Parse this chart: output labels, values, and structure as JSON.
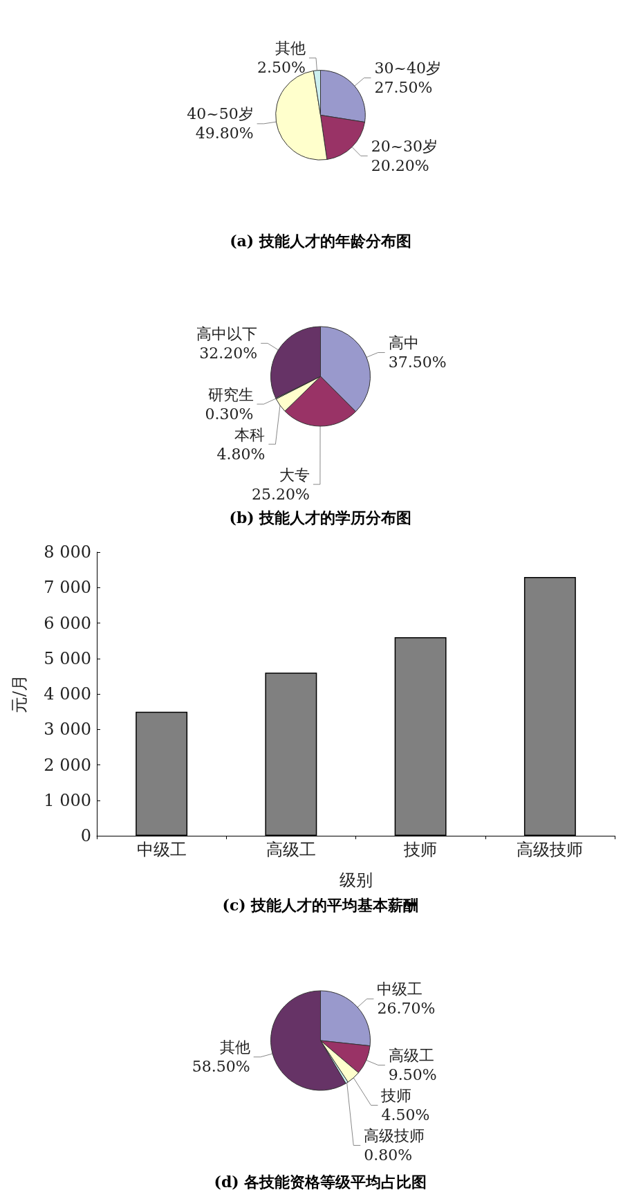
{
  "chart_data": [
    {
      "type": "pie",
      "title": "(a) 技能人才的年龄分布图",
      "categories": [
        "30~40岁",
        "20~30岁",
        "40~50岁",
        "其他"
      ],
      "values": [
        27.5,
        20.2,
        49.8,
        2.5
      ],
      "value_labels": [
        "27.50%",
        "20.20%",
        "49.80%",
        "2.50%"
      ],
      "colors": [
        "#9999cc",
        "#993366",
        "#ffffcc",
        "#ccf0f0"
      ],
      "legend": false
    },
    {
      "type": "pie",
      "title": "(b) 技能人才的学历分布图",
      "categories": [
        "高中",
        "大专",
        "本科",
        "研究生",
        "高中以下"
      ],
      "values": [
        37.5,
        25.2,
        4.8,
        0.3,
        32.2
      ],
      "value_labels": [
        "37.50%",
        "25.20%",
        "4.80%",
        "0.30%",
        "32.20%"
      ],
      "colors": [
        "#9999cc",
        "#993366",
        "#ffffcc",
        "#ccf0f0",
        "#663366"
      ],
      "legend": false
    },
    {
      "type": "bar",
      "title": "(c) 技能人才的平均基本薪酬",
      "xlabel": "级别",
      "ylabel": "元/月",
      "categories": [
        "中级工",
        "高级工",
        "技师",
        "高级技师"
      ],
      "values": [
        3500,
        4600,
        5600,
        7300
      ],
      "color": "#808080",
      "ylim": [
        0,
        8000
      ],
      "yticks": [
        0,
        {
          "value": 1000,
          "label": "1 000"
        },
        {
          "value": 2000,
          "label": "2 000"
        },
        {
          "value": 3000,
          "label": "3 000"
        },
        {
          "value": 4000,
          "label": "4 000"
        },
        {
          "value": 5000,
          "label": "5 000"
        },
        {
          "value": 6000,
          "label": "6 000"
        },
        {
          "value": 7000,
          "label": "7 000"
        },
        {
          "value": 8000,
          "label": "8 000"
        }
      ],
      "grid": false,
      "legend": false
    },
    {
      "type": "pie",
      "title": "(d) 各技能资格等级平均占比图",
      "categories": [
        "中级工",
        "高级工",
        "技师",
        "高级技师",
        "其他"
      ],
      "values": [
        26.7,
        9.5,
        4.5,
        0.8,
        58.5
      ],
      "value_labels": [
        "26.70%",
        "9.50%",
        "4.50%",
        "0.80%",
        "58.50%"
      ],
      "colors": [
        "#9999cc",
        "#993366",
        "#ffffcc",
        "#ccf0f0",
        "#663366"
      ],
      "legend": false
    }
  ]
}
